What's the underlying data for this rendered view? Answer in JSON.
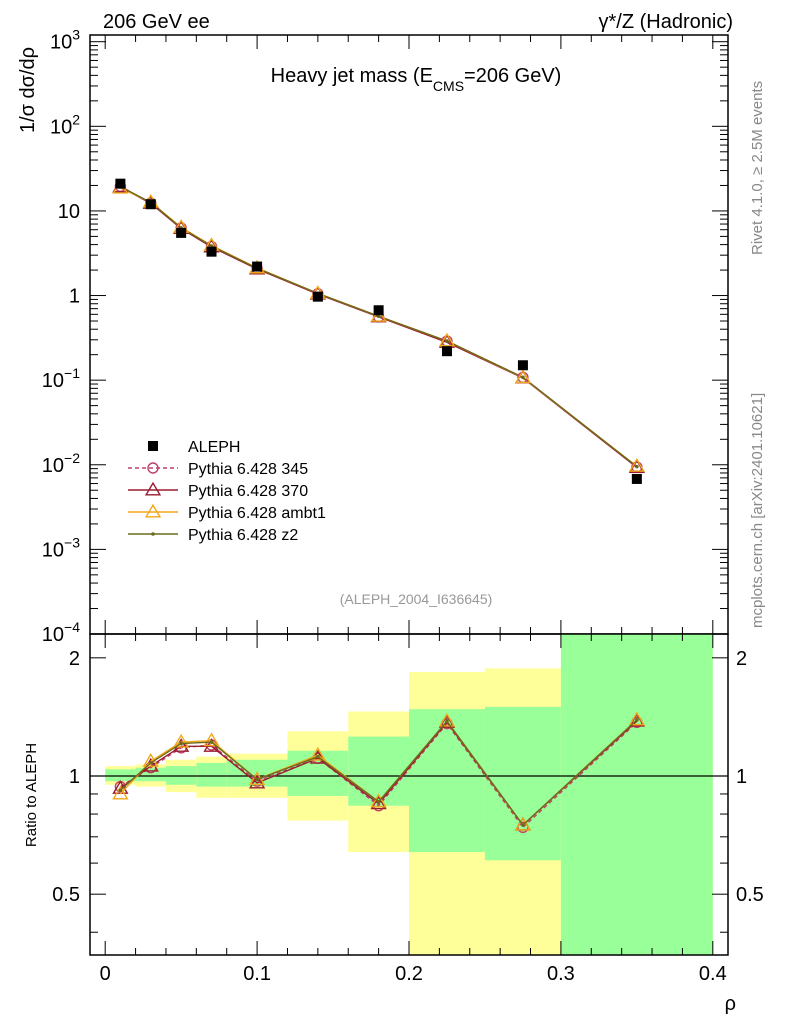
{
  "header": {
    "left": "206 GeV ee",
    "right": "γ*/Z (Hadronic)"
  },
  "side_text": {
    "rivet": "Rivet 4.1.0, ≥ 2.5M events",
    "mcplots": "mcplots.cern.ch [arXiv:2401.10621]"
  },
  "main_panel": {
    "title_main": "Heavy jet mass (E",
    "title_sub": "CMS",
    "title_tail": "=206 GeV)",
    "ylabel": "1/σ  dσ/dρ",
    "watermark": "(ALEPH_2004_I636645)",
    "ytick_labels": [
      {
        "value": 1000,
        "base": "10",
        "exp": "3"
      },
      {
        "value": 100,
        "base": "10",
        "exp": "2"
      },
      {
        "value": 10,
        "base": "10",
        "exp": ""
      },
      {
        "value": 1,
        "base": "1",
        "exp": ""
      },
      {
        "value": 0.1,
        "base": "10",
        "exp": "−1"
      },
      {
        "value": 0.01,
        "base": "10",
        "exp": "−2"
      },
      {
        "value": 0.001,
        "base": "10",
        "exp": "−3"
      },
      {
        "value": 0.0001,
        "base": "10",
        "exp": "−4"
      }
    ]
  },
  "ratio_panel": {
    "ylabel": "Ratio to ALEPH",
    "ytick_labels": [
      "2",
      "1",
      "0.5"
    ],
    "ytick_values": [
      2,
      1,
      0.5
    ],
    "xtick_labels": [
      "0",
      "0.1",
      "0.2",
      "0.3",
      "0.4"
    ],
    "xtick_values": [
      0,
      0.1,
      0.2,
      0.3,
      0.4
    ],
    "xlabel": "ρ"
  },
  "legend": [
    {
      "label": "ALEPH",
      "marker": "square",
      "color": "#000000"
    },
    {
      "label": "Pythia 6.428 345",
      "marker": "circle",
      "color": "#c0406a",
      "dashed": true
    },
    {
      "label": "Pythia 6.428 370",
      "marker": "triangle",
      "color": "#9b1b30",
      "dashed": false
    },
    {
      "label": "Pythia 6.428 ambt1",
      "marker": "triangle",
      "color": "#f0a818",
      "dashed": false
    },
    {
      "label": "Pythia 6.428 z2",
      "marker": "dot",
      "color": "#6b6b1b",
      "dashed": false
    }
  ],
  "chart_data": {
    "type": "scatter",
    "title": "Heavy jet mass (ECMS=206 GeV)",
    "xlabel": "ρ",
    "ylabel": "1/σ dσ/dρ",
    "yscale": "log",
    "xlim": [
      -0.01,
      0.41
    ],
    "ylim": [
      0.0001,
      1200
    ],
    "ratio_ylim": [
      0.35,
      2.3
    ],
    "bins": [
      {
        "x": 0.01,
        "lo": 0.0,
        "hi": 0.02
      },
      {
        "x": 0.03,
        "lo": 0.02,
        "hi": 0.04
      },
      {
        "x": 0.05,
        "lo": 0.04,
        "hi": 0.06
      },
      {
        "x": 0.07,
        "lo": 0.06,
        "hi": 0.08
      },
      {
        "x": 0.1,
        "lo": 0.08,
        "hi": 0.12
      },
      {
        "x": 0.14,
        "lo": 0.12,
        "hi": 0.16
      },
      {
        "x": 0.18,
        "lo": 0.16,
        "hi": 0.2
      },
      {
        "x": 0.225,
        "lo": 0.2,
        "hi": 0.25
      },
      {
        "x": 0.275,
        "lo": 0.25,
        "hi": 0.3
      },
      {
        "x": 0.35,
        "lo": 0.3,
        "hi": 0.4
      }
    ],
    "data": {
      "name": "ALEPH",
      "values": [
        21.0,
        12.0,
        5.5,
        3.3,
        2.2,
        0.97,
        0.67,
        0.22,
        0.15,
        0.0068
      ]
    },
    "band_inner": [
      [
        0.97,
        1.04
      ],
      [
        0.97,
        1.05
      ],
      [
        0.95,
        1.06
      ],
      [
        0.94,
        1.08
      ],
      [
        0.94,
        1.1
      ],
      [
        0.89,
        1.16
      ],
      [
        0.84,
        1.26
      ],
      [
        0.64,
        1.48
      ],
      [
        0.61,
        1.5
      ],
      [
        0.35,
        2.3
      ]
    ],
    "band_outer": [
      [
        0.95,
        1.06
      ],
      [
        0.94,
        1.07
      ],
      [
        0.91,
        1.1
      ],
      [
        0.88,
        1.12
      ],
      [
        0.88,
        1.14
      ],
      [
        0.77,
        1.3
      ],
      [
        0.64,
        1.46
      ],
      [
        0.35,
        1.84
      ],
      [
        0.35,
        1.88
      ],
      [
        0.35,
        2.3
      ]
    ],
    "series": [
      {
        "name": "Pythia 6.428 345",
        "values": [
          19.5,
          12.4,
          6.3,
          3.8,
          2.08,
          1.05,
          0.56,
          0.29,
          0.108,
          0.0094
        ],
        "ratio": [
          0.94,
          1.05,
          1.18,
          1.2,
          0.97,
          1.11,
          0.84,
          1.36,
          0.74,
          1.37
        ]
      },
      {
        "name": "Pythia 6.428 370",
        "values": [
          19.2,
          12.3,
          6.2,
          3.75,
          2.06,
          1.04,
          0.56,
          0.28,
          0.106,
          0.0093
        ],
        "ratio": [
          0.93,
          1.06,
          1.19,
          1.19,
          0.96,
          1.11,
          0.85,
          1.37,
          0.75,
          1.38
        ]
      },
      {
        "name": "Pythia 6.428 ambt1",
        "values": [
          18.6,
          12.7,
          6.4,
          3.9,
          2.12,
          1.06,
          0.57,
          0.29,
          0.107,
          0.0096
        ],
        "ratio": [
          0.9,
          1.09,
          1.22,
          1.23,
          0.98,
          1.13,
          0.86,
          1.38,
          0.75,
          1.39
        ]
      },
      {
        "name": "Pythia 6.428 z2",
        "values": [
          19.4,
          12.6,
          6.3,
          3.85,
          2.1,
          1.06,
          0.57,
          0.29,
          0.108,
          0.0095
        ],
        "ratio": [
          0.92,
          1.08,
          1.21,
          1.22,
          0.98,
          1.12,
          0.86,
          1.38,
          0.75,
          1.39
        ]
      }
    ]
  }
}
